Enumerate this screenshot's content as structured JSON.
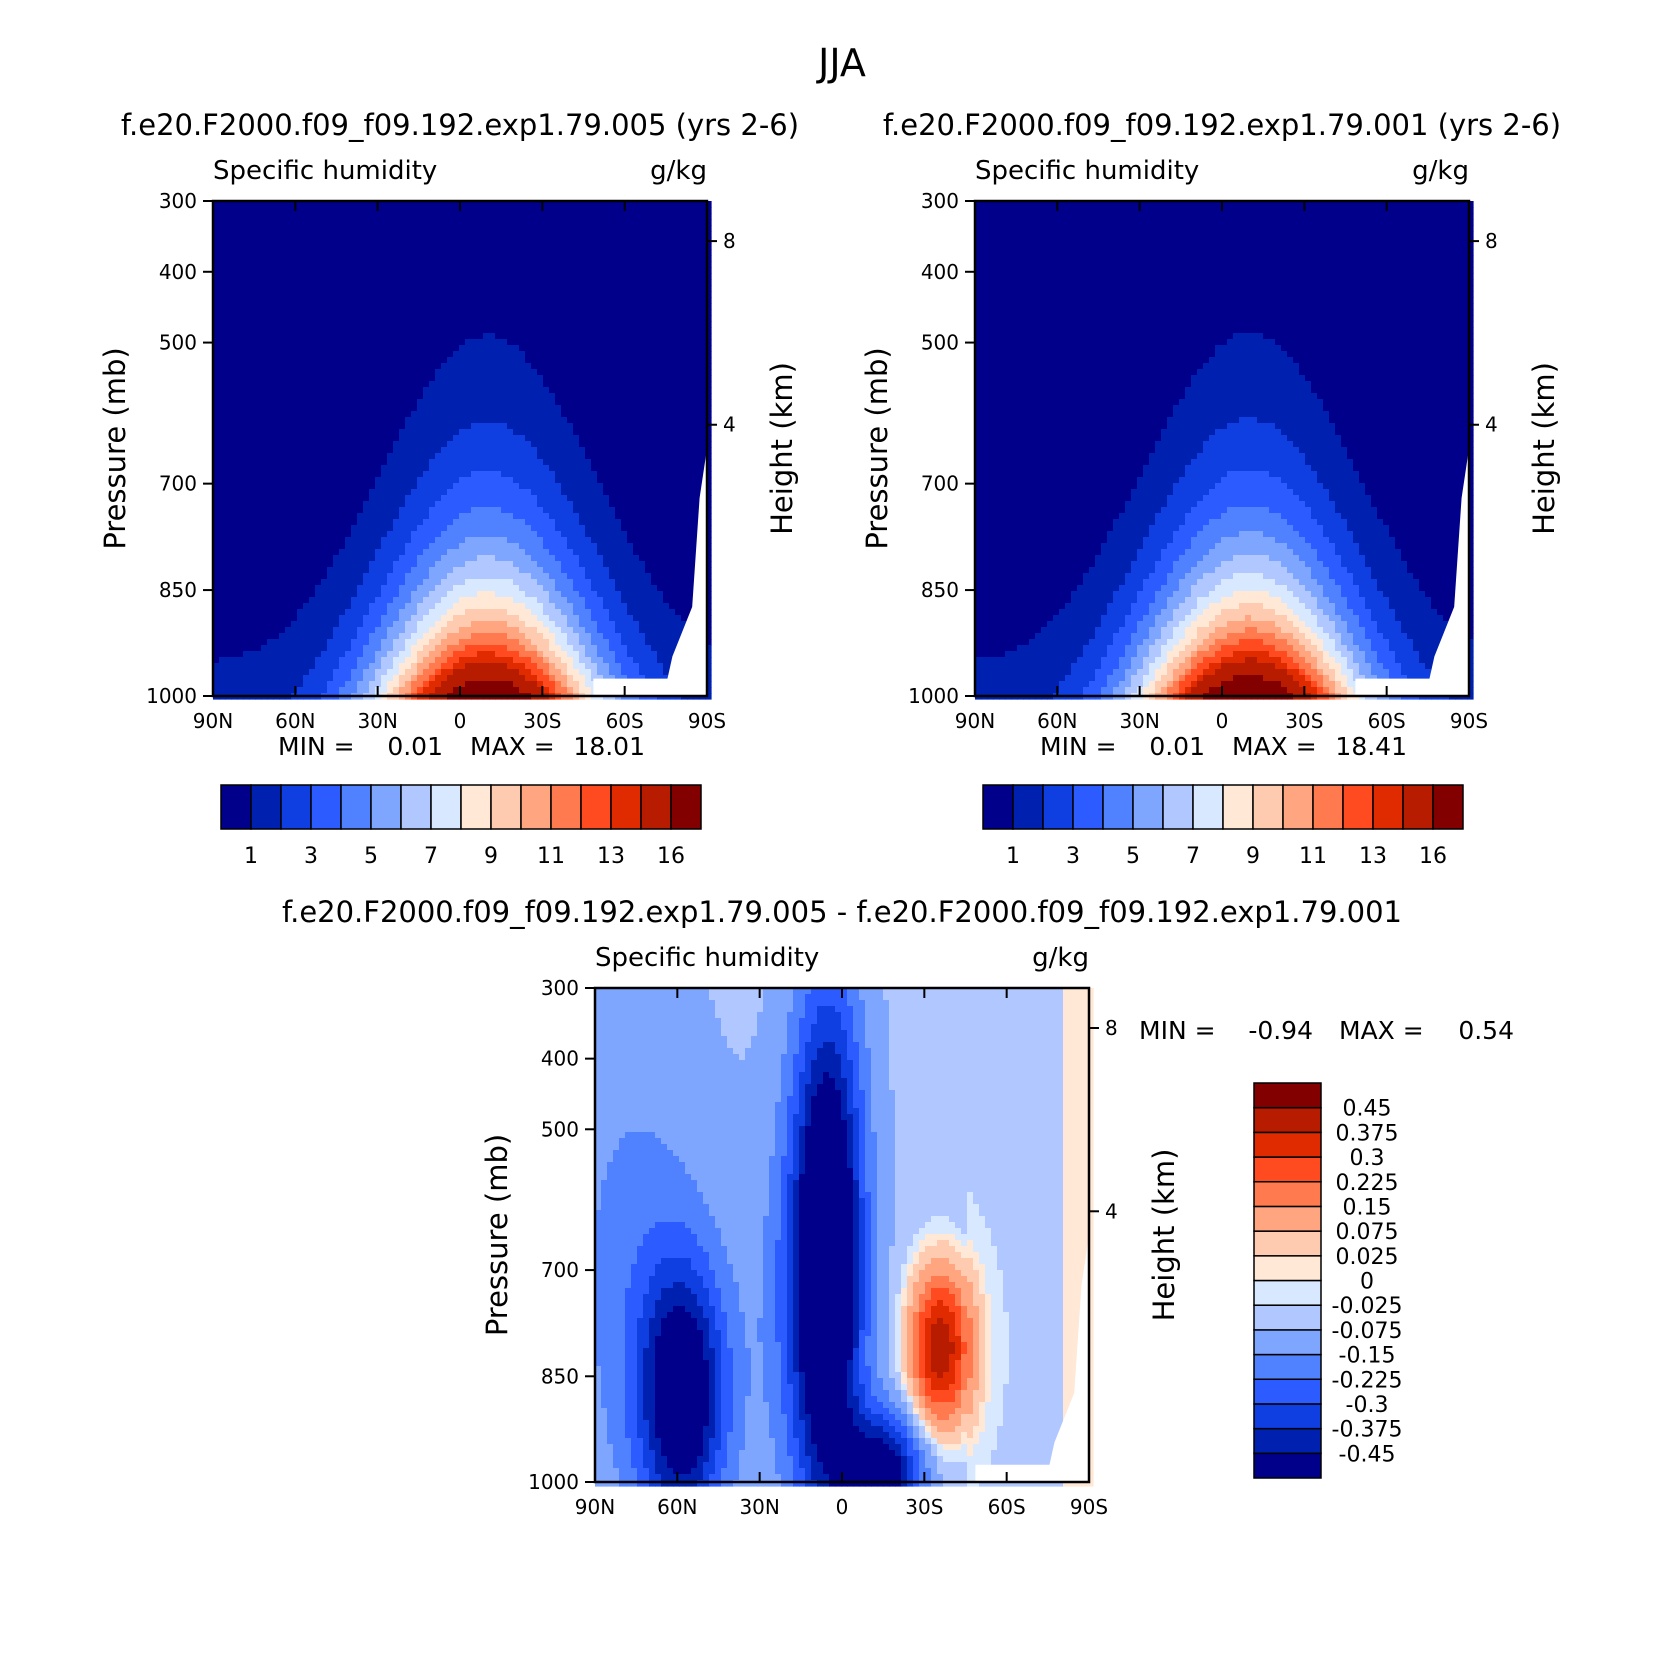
{
  "figure_title": "JJA",
  "min_label": "MIN =",
  "max_label": "MAX =",
  "chart_data": [
    {
      "type": "heatmap",
      "title": "f.e20.F2000.f09_f09.192.exp1.79.005 (yrs 2-6)",
      "variable": "Specific humidity",
      "units": "g/kg",
      "ylabel": "Pressure (mb)",
      "y2label": "Height (km)",
      "x_ticks": [
        "90N",
        "60N",
        "30N",
        "0",
        "30S",
        "60S",
        "90S"
      ],
      "y_ticks": [
        "300",
        "400",
        "500",
        "700",
        "850",
        "1000"
      ],
      "y2_ticks": [
        "8",
        "4"
      ],
      "ylim": [
        1000,
        300
      ],
      "xlim": [
        90,
        -90
      ],
      "min": "0.01",
      "max": "18.01",
      "peak_latitude": -10,
      "peak_value": 18.01,
      "colorbar": {
        "orientation": "horizontal",
        "levels": [
          1,
          2,
          3,
          4,
          5,
          6,
          7,
          8,
          9,
          10,
          11,
          12,
          13,
          14,
          16
        ],
        "tick_labels": [
          "1",
          "3",
          "5",
          "7",
          "9",
          "11",
          "13",
          "16"
        ],
        "colors": [
          "#00008b",
          "#0021b0",
          "#0f3fe0",
          "#2c5cff",
          "#5082ff",
          "#7fa6ff",
          "#b0c8ff",
          "#d8e8ff",
          "#ffe8d6",
          "#ffcbb0",
          "#ffa680",
          "#ff7a4f",
          "#ff4b1f",
          "#e02a00",
          "#b71c00",
          "#820000"
        ]
      }
    },
    {
      "type": "heatmap",
      "title": "f.e20.F2000.f09_f09.192.exp1.79.001 (yrs 2-6)",
      "variable": "Specific humidity",
      "units": "g/kg",
      "ylabel": "Pressure (mb)",
      "y2label": "Height (km)",
      "x_ticks": [
        "90N",
        "60N",
        "30N",
        "0",
        "30S",
        "60S",
        "90S"
      ],
      "y_ticks": [
        "300",
        "400",
        "500",
        "700",
        "850",
        "1000"
      ],
      "y2_ticks": [
        "8",
        "4"
      ],
      "ylim": [
        1000,
        300
      ],
      "xlim": [
        90,
        -90
      ],
      "min": "0.01",
      "max": "18.41",
      "peak_latitude": -10,
      "peak_value": 18.41,
      "colorbar": {
        "orientation": "horizontal",
        "levels": [
          1,
          2,
          3,
          4,
          5,
          6,
          7,
          8,
          9,
          10,
          11,
          12,
          13,
          14,
          16
        ],
        "tick_labels": [
          "1",
          "3",
          "5",
          "7",
          "9",
          "11",
          "13",
          "16"
        ],
        "colors": [
          "#00008b",
          "#0021b0",
          "#0f3fe0",
          "#2c5cff",
          "#5082ff",
          "#7fa6ff",
          "#b0c8ff",
          "#d8e8ff",
          "#ffe8d6",
          "#ffcbb0",
          "#ffa680",
          "#ff7a4f",
          "#ff4b1f",
          "#e02a00",
          "#b71c00",
          "#820000"
        ]
      }
    },
    {
      "type": "heatmap",
      "title": "f.e20.F2000.f09_f09.192.exp1.79.005 - f.e20.F2000.f09_f09.192.exp1.79.001",
      "variable": "Specific humidity",
      "units": "g/kg",
      "ylabel": "Pressure (mb)",
      "y2label": "Height (km)",
      "x_ticks": [
        "90N",
        "60N",
        "30N",
        "0",
        "30S",
        "60S",
        "90S"
      ],
      "y_ticks": [
        "300",
        "400",
        "500",
        "700",
        "850",
        "1000"
      ],
      "y2_ticks": [
        "8",
        "4"
      ],
      "ylim": [
        1000,
        300
      ],
      "xlim": [
        90,
        -90
      ],
      "min": "-0.94",
      "max": "0.54",
      "features": [
        {
          "lat": 58,
          "pressure": 880,
          "value": -0.5
        },
        {
          "lat": 5,
          "pressure": 680,
          "value": -0.6
        },
        {
          "lat": -15,
          "pressure": 990,
          "value": -0.5
        },
        {
          "lat": -36,
          "pressure": 810,
          "value": 0.5
        }
      ],
      "colorbar": {
        "orientation": "vertical",
        "levels": [
          -0.45,
          -0.375,
          -0.3,
          -0.225,
          -0.15,
          -0.075,
          -0.025,
          0,
          0.025,
          0.075,
          0.15,
          0.225,
          0.3,
          0.375,
          0.45
        ],
        "tick_labels": [
          "0.45",
          "0.375",
          "0.3",
          "0.225",
          "0.15",
          "0.075",
          "0.025",
          "0",
          "-0.025",
          "-0.075",
          "-0.15",
          "-0.225",
          "-0.3",
          "-0.375",
          "-0.45"
        ],
        "colors": [
          "#00008b",
          "#0021b0",
          "#0f3fe0",
          "#2c5cff",
          "#5082ff",
          "#7fa6ff",
          "#b0c8ff",
          "#d8e8ff",
          "#ffe8d6",
          "#ffcbb0",
          "#ffa680",
          "#ff7a4f",
          "#ff4b1f",
          "#e02a00",
          "#b71c00",
          "#820000"
        ]
      }
    }
  ]
}
